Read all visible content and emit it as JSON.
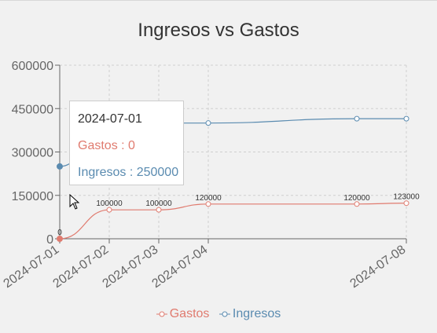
{
  "chart_data": {
    "type": "line",
    "title": "Ingresos vs Gastos",
    "categories": [
      "2024-07-01",
      "2024-07-02",
      "2024-07-03",
      "2024-07-04",
      "2024-07-08"
    ],
    "x": [
      "2024-07-01",
      "2024-07-02",
      "2024-07-03",
      "2024-07-04",
      "2024-07-07",
      "2024-07-08"
    ],
    "yticks": [
      "0",
      "150000",
      "300000",
      "450000",
      "600000"
    ],
    "ylim": [
      0,
      600000
    ],
    "grid": true,
    "legend_position": "bottom-center",
    "series": [
      {
        "name": "Gastos",
        "color": "#e07b6f",
        "values": [
          0,
          100000,
          100000,
          120000,
          120000,
          123000
        ],
        "labels": [
          "0",
          "100000",
          "100000",
          "120000",
          "120000",
          "123000"
        ]
      },
      {
        "name": "Ingresos",
        "color": "#5a8bb0",
        "values": [
          250000,
          400000,
          400000,
          400000,
          415000,
          415000
        ]
      }
    ],
    "tooltip": {
      "date": "2024-07-01",
      "gastos": "Gastos : 0",
      "ingresos": "Ingresos : 250000"
    }
  }
}
